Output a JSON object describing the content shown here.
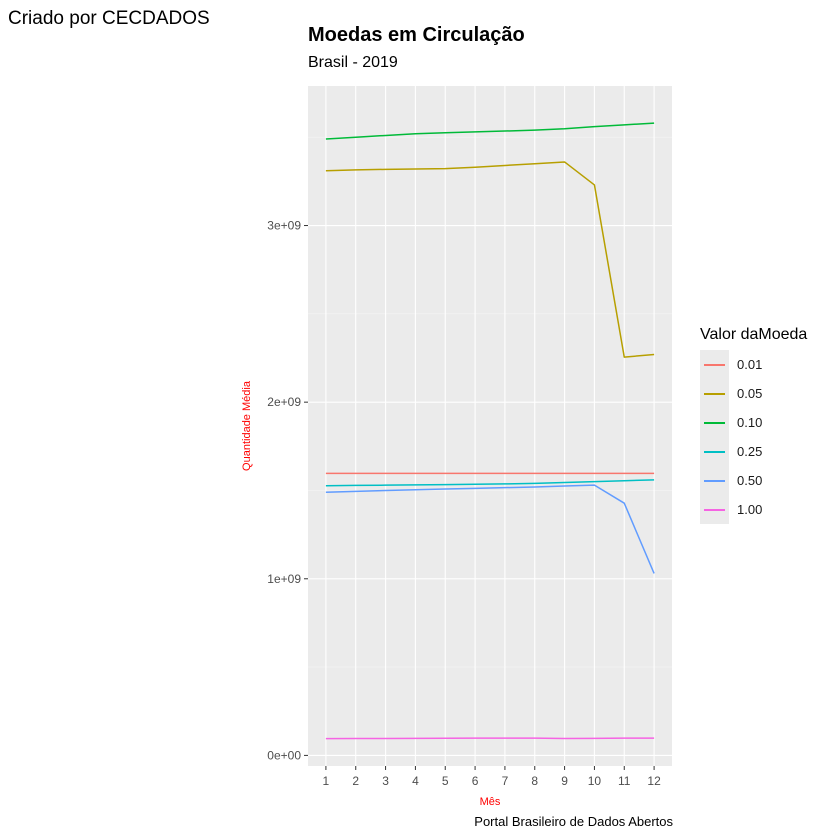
{
  "corner_text": "Criado por CECDADOS",
  "caption": "Portal Brasileiro de Dados Abertos",
  "chart_data": {
    "type": "line",
    "title": "Moedas em Circulação",
    "subtitle": "Brasil - 2019",
    "xlabel": "Mês",
    "ylabel": "Quantidade Média",
    "x": [
      1,
      2,
      3,
      4,
      5,
      6,
      7,
      8,
      9,
      10,
      11,
      12
    ],
    "xticks": [
      "1",
      "2",
      "3",
      "4",
      "5",
      "6",
      "7",
      "8",
      "9",
      "10",
      "11",
      "12"
    ],
    "ylim": [
      -60000000,
      3790000000
    ],
    "yticks": [
      {
        "value": 0,
        "label": "0e+00"
      },
      {
        "value": 1000000000,
        "label": "1e+09"
      },
      {
        "value": 2000000000,
        "label": "2e+09"
      },
      {
        "value": 3000000000,
        "label": "3e+09"
      }
    ],
    "legend_title": "Valor daMoeda",
    "legend_position": "right",
    "grid": true,
    "series": [
      {
        "name": "0.01",
        "color": "#F8766D",
        "values": [
          1597000000,
          1597000000,
          1597000000,
          1597000000,
          1597000000,
          1597000000,
          1597000000,
          1597000000,
          1597000000,
          1597000000,
          1597000000,
          1597000000
        ]
      },
      {
        "name": "0.05",
        "color": "#B79F00",
        "values": [
          3310000000,
          3315000000,
          3318000000,
          3320000000,
          3322000000,
          3330000000,
          3340000000,
          3350000000,
          3360000000,
          3230000000,
          2255000000,
          2270000000
        ]
      },
      {
        "name": "0.10",
        "color": "#00BA38",
        "values": [
          3490000000,
          3500000000,
          3510000000,
          3520000000,
          3525000000,
          3530000000,
          3535000000,
          3540000000,
          3548000000,
          3560000000,
          3570000000,
          3580000000
        ]
      },
      {
        "name": "0.25",
        "color": "#00BFC4",
        "values": [
          1527000000,
          1529000000,
          1530000000,
          1532000000,
          1533000000,
          1535000000,
          1537000000,
          1540000000,
          1545000000,
          1550000000,
          1555000000,
          1560000000
        ]
      },
      {
        "name": "0.50",
        "color": "#619CFF",
        "values": [
          1490000000,
          1495000000,
          1500000000,
          1504000000,
          1508000000,
          1512000000,
          1516000000,
          1520000000,
          1525000000,
          1530000000,
          1428000000,
          1030000000
        ]
      },
      {
        "name": "1.00",
        "color": "#F564E3",
        "values": [
          95000000,
          95500000,
          96000000,
          96500000,
          97000000,
          97500000,
          97800000,
          98000000,
          96000000,
          96500000,
          97500000,
          98000000
        ]
      }
    ]
  }
}
